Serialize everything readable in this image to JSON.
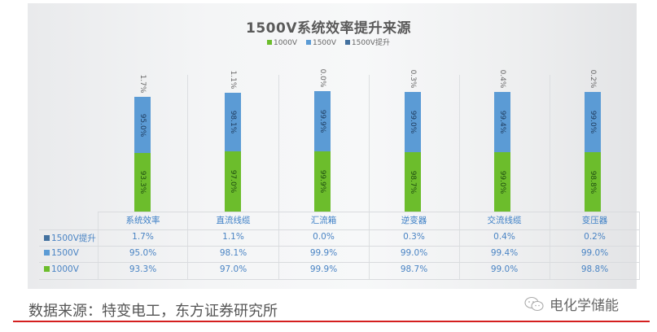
{
  "chart_data": {
    "type": "bar",
    "stacked": true,
    "title": "1500V系统效率提升来源",
    "categories": [
      "系统效率",
      "直流线缆",
      "汇流箱",
      "逆变器",
      "交流线缆",
      "变压器"
    ],
    "series": [
      {
        "name": "1000V",
        "color": "#6cbd2c",
        "values": [
          93.3,
          97.0,
          99.9,
          98.7,
          99.0,
          98.8
        ],
        "labels": [
          "93.3%",
          "97.0%",
          "99.9%",
          "98.7%",
          "99.0%",
          "98.8%"
        ]
      },
      {
        "name": "1500V",
        "color": "#5b9bd5",
        "values": [
          95.0,
          98.1,
          99.9,
          99.0,
          99.4,
          99.0
        ],
        "labels": [
          "95.0%",
          "98.1%",
          "99.9%",
          "99.0%",
          "99.4%",
          "99.0%"
        ]
      },
      {
        "name": "1500V提升",
        "color": "#43719f",
        "values": [
          1.7,
          1.1,
          0.0,
          0.3,
          0.4,
          0.2
        ],
        "labels": [
          "1.7%",
          "1.1%",
          "0.0%",
          "0.3%",
          "0.4%",
          "0.2%"
        ]
      }
    ],
    "legend_position": "top",
    "grid": false,
    "data_table": true,
    "xlabel": "",
    "ylabel": ""
  },
  "title": "1500V系统效率提升来源",
  "legend": [
    {
      "label": "1000V",
      "color": "#6cbd2c"
    },
    {
      "label": "1500V",
      "color": "#5b9bd5"
    },
    {
      "label": "1500V提升",
      "color": "#43719f"
    }
  ],
  "table": {
    "rows": [
      {
        "label": "1500V提升",
        "color": "#43719f",
        "cells": [
          "1.7%",
          "1.1%",
          "0.0%",
          "0.3%",
          "0.4%",
          "0.2%"
        ]
      },
      {
        "label": "1500V",
        "color": "#5b9bd5",
        "cells": [
          "95.0%",
          "98.1%",
          "99.9%",
          "99.0%",
          "99.4%",
          "99.0%"
        ]
      },
      {
        "label": "1000V",
        "color": "#6cbd2c",
        "cells": [
          "93.3%",
          "97.0%",
          "99.9%",
          "98.7%",
          "99.0%",
          "98.8%"
        ]
      }
    ]
  },
  "footer": {
    "source": "数据来源：特变电工，东方证券研究所",
    "brand": "电化学储能",
    "accent_color": "#d41f1f"
  }
}
